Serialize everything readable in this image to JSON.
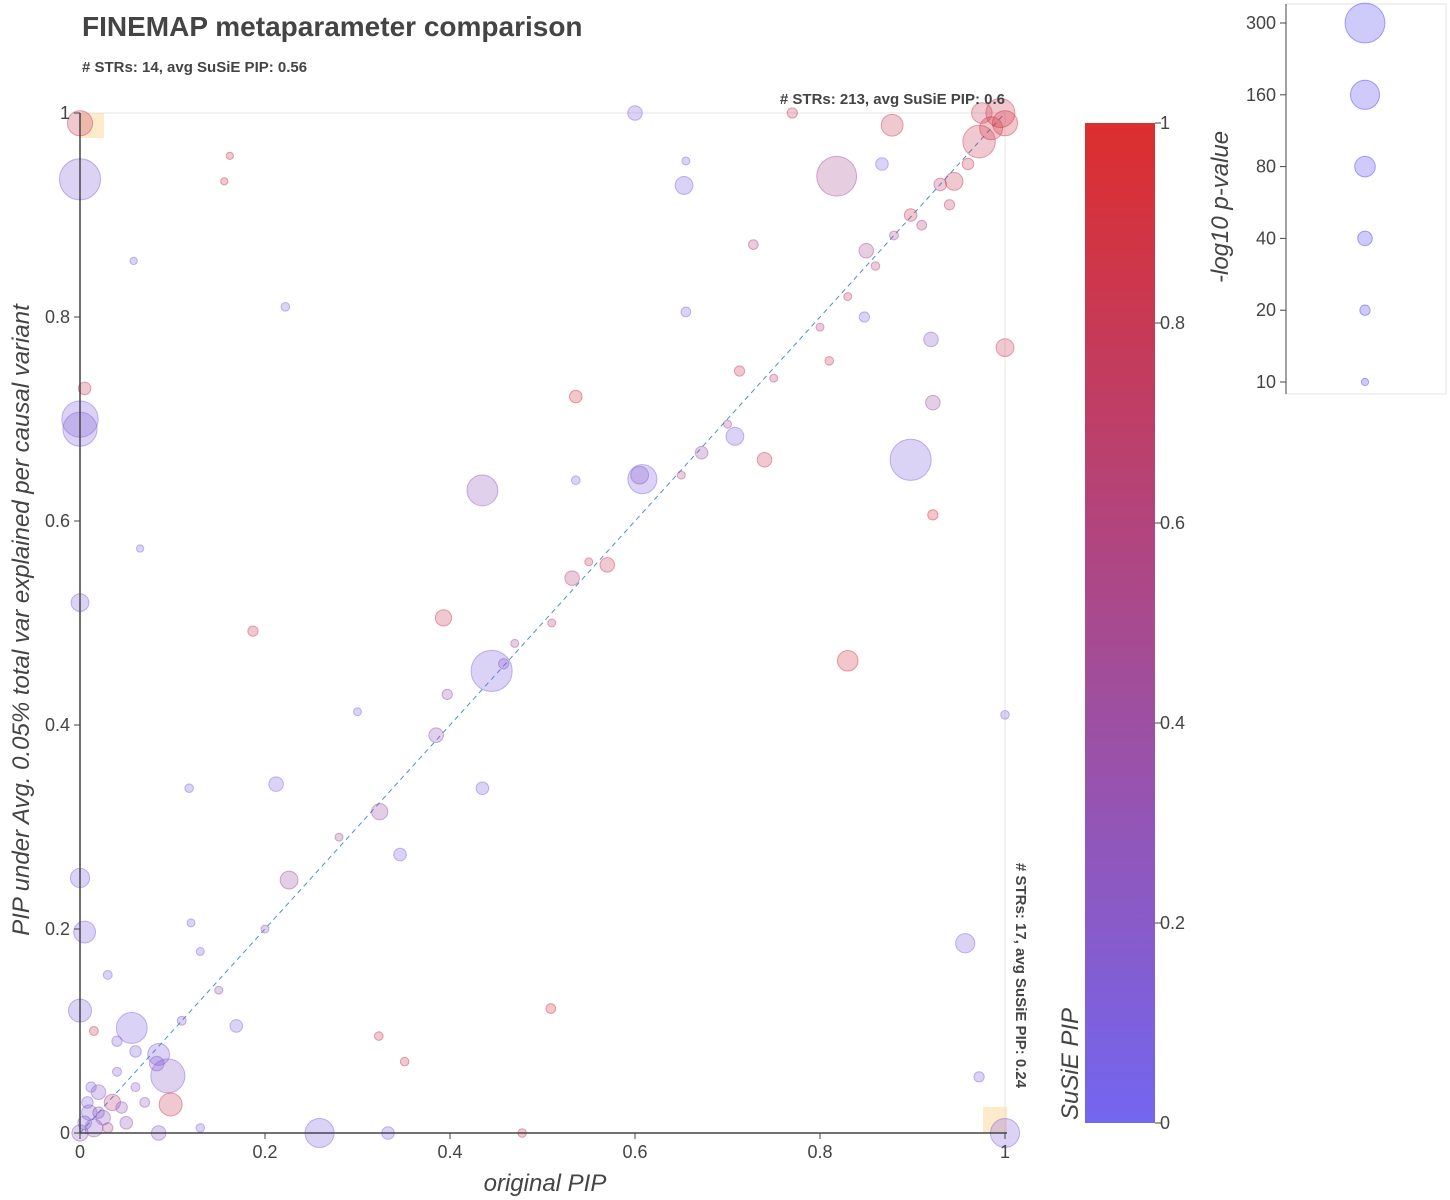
{
  "chart_data": {
    "type": "scatter",
    "title": "FINEMAP metaparameter comparison",
    "subtitle": "# STRs: 14, avg SuSiE PIP: 0.56",
    "xlabel": "original PIP",
    "ylabel": "PIP under Avg. 0.05% total var explained per causal variant",
    "xlim": [
      0,
      1
    ],
    "ylim": [
      0,
      1
    ],
    "x_ticks": [
      "0",
      "0.2",
      "0.4",
      "0.6",
      "0.8",
      "1"
    ],
    "y_ticks": [
      "0",
      "0.2",
      "0.4",
      "0.6",
      "0.8",
      "1"
    ],
    "grid": false,
    "diagonal_reference_line": true,
    "corner_annotations": [
      {
        "text": "# STRs: 213, avg SuSiE PIP: 0.6",
        "corner": "top-right"
      },
      {
        "text": "# STRs: 17, avg SuSiE PIP: 0.24",
        "corner": "bottom-right"
      }
    ],
    "colorbar": {
      "title": "SuSiE PIP",
      "range": [
        0,
        1
      ],
      "ticks": [
        "0",
        "0.2",
        "0.4",
        "0.6",
        "0.8",
        "1"
      ],
      "color_low": "#7366f0",
      "color_high": "#dd2e2e"
    },
    "size_legend": {
      "title": "-log10 p-value",
      "entries": [
        {
          "label": "300",
          "value": 300
        },
        {
          "label": "160",
          "value": 160
        },
        {
          "label": "80",
          "value": 80
        },
        {
          "label": "40",
          "value": 40
        },
        {
          "label": "20",
          "value": 20
        },
        {
          "label": "10",
          "value": 10
        }
      ]
    },
    "points": [
      {
        "x": 0.0,
        "y": 0.935,
        "p": 320,
        "c": 0.15
      },
      {
        "x": 0.0,
        "y": 0.7,
        "p": 250,
        "c": 0.1
      },
      {
        "x": 0.0,
        "y": 0.69,
        "p": 220,
        "c": 0.15
      },
      {
        "x": 0.0,
        "y": 0.52,
        "p": 60,
        "c": 0.1
      },
      {
        "x": 0.0,
        "y": 0.25,
        "p": 70,
        "c": 0.1
      },
      {
        "x": 0.005,
        "y": 0.197,
        "p": 90,
        "c": 0.1
      },
      {
        "x": 0.0,
        "y": 0.12,
        "p": 100,
        "c": 0.1
      },
      {
        "x": 0.0,
        "y": 0.99,
        "p": 120,
        "c": 0.8
      },
      {
        "x": 0.005,
        "y": 0.73,
        "p": 30,
        "c": 0.8
      },
      {
        "x": 0.015,
        "y": 0.1,
        "p": 15,
        "c": 0.8
      },
      {
        "x": 0.222,
        "y": 0.81,
        "p": 14,
        "c": 0.1
      },
      {
        "x": 0.058,
        "y": 0.855,
        "p": 10,
        "c": 0.1
      },
      {
        "x": 0.162,
        "y": 0.958,
        "p": 10,
        "c": 0.8
      },
      {
        "x": 0.156,
        "y": 0.933,
        "p": 10,
        "c": 0.8
      },
      {
        "x": 0.065,
        "y": 0.573,
        "p": 10,
        "c": 0.1
      },
      {
        "x": 0.187,
        "y": 0.492,
        "p": 20,
        "c": 0.8
      },
      {
        "x": 0.056,
        "y": 0.103,
        "p": 180,
        "c": 0.1
      },
      {
        "x": 0.085,
        "y": 0.077,
        "p": 90,
        "c": 0.15
      },
      {
        "x": 0.083,
        "y": 0.068,
        "p": 40,
        "c": 0.15
      },
      {
        "x": 0.095,
        "y": 0.056,
        "p": 220,
        "c": 0.2
      },
      {
        "x": 0.098,
        "y": 0.028,
        "p": 100,
        "c": 0.8
      },
      {
        "x": 0.169,
        "y": 0.105,
        "p": 30,
        "c": 0.1
      },
      {
        "x": 0.212,
        "y": 0.342,
        "p": 40,
        "c": 0.1
      },
      {
        "x": 0.118,
        "y": 0.338,
        "p": 14,
        "c": 0.1
      },
      {
        "x": 0.226,
        "y": 0.248,
        "p": 60,
        "c": 0.4
      },
      {
        "x": 0.259,
        "y": 0.0,
        "p": 160,
        "c": 0.1
      },
      {
        "x": 0.03,
        "y": 0.155,
        "p": 15,
        "c": 0.1
      },
      {
        "x": 0.04,
        "y": 0.09,
        "p": 20,
        "c": 0.15
      },
      {
        "x": 0.06,
        "y": 0.08,
        "p": 25,
        "c": 0.1
      },
      {
        "x": 0.02,
        "y": 0.04,
        "p": 40,
        "c": 0.2
      },
      {
        "x": 0.035,
        "y": 0.03,
        "p": 50,
        "c": 0.6
      },
      {
        "x": 0.05,
        "y": 0.01,
        "p": 30,
        "c": 0.3
      },
      {
        "x": 0.025,
        "y": 0.015,
        "p": 40,
        "c": 0.2
      },
      {
        "x": 0.01,
        "y": 0.02,
        "p": 45,
        "c": 0.15
      },
      {
        "x": 0.015,
        "y": 0.005,
        "p": 60,
        "c": 0.2
      },
      {
        "x": 0.005,
        "y": 0.01,
        "p": 35,
        "c": 0.15
      },
      {
        "x": 0.0,
        "y": 0.0,
        "p": 50,
        "c": 0.25
      },
      {
        "x": 0.008,
        "y": 0.03,
        "p": 25,
        "c": 0.1
      },
      {
        "x": 0.02,
        "y": 0.02,
        "p": 25,
        "c": 0.3
      },
      {
        "x": 0.03,
        "y": 0.005,
        "p": 20,
        "c": 0.5
      },
      {
        "x": 0.045,
        "y": 0.025,
        "p": 25,
        "c": 0.25
      },
      {
        "x": 0.012,
        "y": 0.045,
        "p": 20,
        "c": 0.1
      },
      {
        "x": 0.04,
        "y": 0.06,
        "p": 15,
        "c": 0.2
      },
      {
        "x": 0.07,
        "y": 0.03,
        "p": 18,
        "c": 0.25
      },
      {
        "x": 0.06,
        "y": 0.045,
        "p": 15,
        "c": 0.2
      },
      {
        "x": 0.085,
        "y": 0.0,
        "p": 40,
        "c": 0.2
      },
      {
        "x": 0.11,
        "y": 0.11,
        "p": 15,
        "c": 0.2
      },
      {
        "x": 0.13,
        "y": 0.005,
        "p": 14,
        "c": 0.1
      },
      {
        "x": 0.13,
        "y": 0.178,
        "p": 12,
        "c": 0.1
      },
      {
        "x": 0.12,
        "y": 0.206,
        "p": 12,
        "c": 0.1
      },
      {
        "x": 0.333,
        "y": 0.0,
        "p": 30,
        "c": 0.1
      },
      {
        "x": 0.3,
        "y": 0.413,
        "p": 12,
        "c": 0.1
      },
      {
        "x": 0.324,
        "y": 0.315,
        "p": 50,
        "c": 0.4
      },
      {
        "x": 0.346,
        "y": 0.273,
        "p": 30,
        "c": 0.1
      },
      {
        "x": 0.385,
        "y": 0.39,
        "p": 40,
        "c": 0.3
      },
      {
        "x": 0.393,
        "y": 0.505,
        "p": 50,
        "c": 0.8
      },
      {
        "x": 0.397,
        "y": 0.43,
        "p": 20,
        "c": 0.3
      },
      {
        "x": 0.435,
        "y": 0.63,
        "p": 180,
        "c": 0.3
      },
      {
        "x": 0.435,
        "y": 0.338,
        "p": 30,
        "c": 0.1
      },
      {
        "x": 0.445,
        "y": 0.453,
        "p": 320,
        "c": 0.1
      },
      {
        "x": 0.458,
        "y": 0.46,
        "p": 20,
        "c": 0.2
      },
      {
        "x": 0.478,
        "y": 0.0,
        "p": 14,
        "c": 0.8
      },
      {
        "x": 0.532,
        "y": 0.544,
        "p": 40,
        "c": 0.6
      },
      {
        "x": 0.536,
        "y": 0.722,
        "p": 30,
        "c": 0.9
      },
      {
        "x": 0.536,
        "y": 0.64,
        "p": 14,
        "c": 0.1
      },
      {
        "x": 0.57,
        "y": 0.557,
        "p": 40,
        "c": 0.8
      },
      {
        "x": 0.509,
        "y": 0.122,
        "p": 18,
        "c": 0.9
      },
      {
        "x": 0.323,
        "y": 0.095,
        "p": 14,
        "c": 0.8
      },
      {
        "x": 0.351,
        "y": 0.07,
        "p": 14,
        "c": 0.8
      },
      {
        "x": 0.608,
        "y": 0.641,
        "p": 160,
        "c": 0.1
      },
      {
        "x": 0.605,
        "y": 0.645,
        "p": 60,
        "c": 0.2
      },
      {
        "x": 0.6,
        "y": 1.0,
        "p": 40,
        "c": 0.1
      },
      {
        "x": 0.653,
        "y": 0.929,
        "p": 60,
        "c": 0.1
      },
      {
        "x": 0.655,
        "y": 0.953,
        "p": 12,
        "c": 0.1
      },
      {
        "x": 0.655,
        "y": 0.805,
        "p": 18,
        "c": 0.1
      },
      {
        "x": 0.672,
        "y": 0.667,
        "p": 30,
        "c": 0.4
      },
      {
        "x": 0.708,
        "y": 0.683,
        "p": 60,
        "c": 0.1
      },
      {
        "x": 0.713,
        "y": 0.747,
        "p": 20,
        "c": 0.8
      },
      {
        "x": 0.74,
        "y": 0.66,
        "p": 40,
        "c": 0.8
      },
      {
        "x": 0.728,
        "y": 0.871,
        "p": 18,
        "c": 0.6
      },
      {
        "x": 0.77,
        "y": 1.0,
        "p": 20,
        "c": 0.8
      },
      {
        "x": 0.81,
        "y": 0.757,
        "p": 14,
        "c": 0.8
      },
      {
        "x": 0.818,
        "y": 0.938,
        "p": 300,
        "c": 0.5
      },
      {
        "x": 0.83,
        "y": 0.463,
        "p": 80,
        "c": 0.9
      },
      {
        "x": 0.848,
        "y": 0.8,
        "p": 20,
        "c": 0.1
      },
      {
        "x": 0.85,
        "y": 0.865,
        "p": 40,
        "c": 0.5
      },
      {
        "x": 0.867,
        "y": 0.95,
        "p": 30,
        "c": 0.1
      },
      {
        "x": 0.878,
        "y": 0.988,
        "p": 90,
        "c": 0.8
      },
      {
        "x": 0.898,
        "y": 0.66,
        "p": 320,
        "c": 0.1
      },
      {
        "x": 0.898,
        "y": 0.9,
        "p": 30,
        "c": 0.8
      },
      {
        "x": 0.92,
        "y": 0.778,
        "p": 40,
        "c": 0.2
      },
      {
        "x": 0.922,
        "y": 0.716,
        "p": 40,
        "c": 0.4
      },
      {
        "x": 0.922,
        "y": 0.606,
        "p": 20,
        "c": 0.9
      },
      {
        "x": 0.945,
        "y": 0.933,
        "p": 60,
        "c": 0.8
      },
      {
        "x": 0.957,
        "y": 0.186,
        "p": 70,
        "c": 0.1
      },
      {
        "x": 0.972,
        "y": 0.972,
        "p": 200,
        "c": 0.8
      },
      {
        "x": 0.975,
        "y": 1.0,
        "p": 80,
        "c": 0.8
      },
      {
        "x": 0.985,
        "y": 0.985,
        "p": 100,
        "c": 0.9
      },
      {
        "x": 0.995,
        "y": 1.0,
        "p": 160,
        "c": 0.85
      },
      {
        "x": 1.0,
        "y": 0.99,
        "p": 120,
        "c": 0.9
      },
      {
        "x": 1.0,
        "y": 0.77,
        "p": 60,
        "c": 0.8
      },
      {
        "x": 1.0,
        "y": 0.0,
        "p": 160,
        "c": 0.15
      },
      {
        "x": 1.0,
        "y": 0.41,
        "p": 14,
        "c": 0.1
      },
      {
        "x": 0.972,
        "y": 0.055,
        "p": 20,
        "c": 0.1
      },
      {
        "x": 0.93,
        "y": 0.93,
        "p": 30,
        "c": 0.7
      },
      {
        "x": 0.96,
        "y": 0.95,
        "p": 25,
        "c": 0.8
      },
      {
        "x": 0.94,
        "y": 0.91,
        "p": 20,
        "c": 0.7
      },
      {
        "x": 0.91,
        "y": 0.89,
        "p": 18,
        "c": 0.6
      },
      {
        "x": 0.88,
        "y": 0.88,
        "p": 15,
        "c": 0.5
      },
      {
        "x": 0.86,
        "y": 0.85,
        "p": 14,
        "c": 0.6
      },
      {
        "x": 0.83,
        "y": 0.82,
        "p": 12,
        "c": 0.7
      },
      {
        "x": 0.8,
        "y": 0.79,
        "p": 12,
        "c": 0.6
      },
      {
        "x": 0.75,
        "y": 0.74,
        "p": 12,
        "c": 0.6
      },
      {
        "x": 0.7,
        "y": 0.695,
        "p": 12,
        "c": 0.5
      },
      {
        "x": 0.65,
        "y": 0.645,
        "p": 12,
        "c": 0.5
      },
      {
        "x": 0.55,
        "y": 0.56,
        "p": 12,
        "c": 0.7
      },
      {
        "x": 0.51,
        "y": 0.5,
        "p": 12,
        "c": 0.6
      },
      {
        "x": 0.47,
        "y": 0.48,
        "p": 12,
        "c": 0.4
      },
      {
        "x": 0.28,
        "y": 0.29,
        "p": 12,
        "c": 0.4
      },
      {
        "x": 0.2,
        "y": 0.2,
        "p": 12,
        "c": 0.3
      },
      {
        "x": 0.15,
        "y": 0.14,
        "p": 12,
        "c": 0.3
      }
    ]
  }
}
